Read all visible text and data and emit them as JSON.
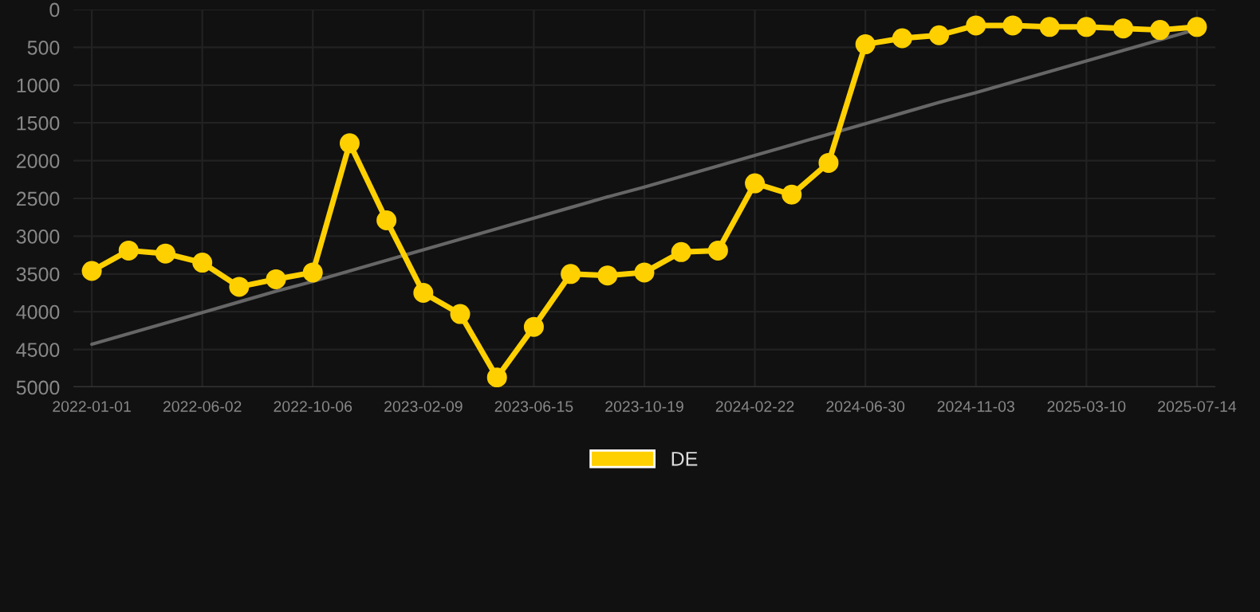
{
  "chart_data": {
    "type": "line",
    "categories": [
      "2022-01-01",
      null,
      null,
      "2022-06-02",
      null,
      null,
      "2022-10-06",
      null,
      null,
      "2023-02-09",
      null,
      null,
      "2023-06-15",
      null,
      null,
      "2023-10-19",
      null,
      null,
      "2024-02-22",
      null,
      null,
      "2024-06-30",
      null,
      null,
      "2024-11-03",
      null,
      null,
      "2025-03-10",
      null,
      null,
      "2025-07-14"
    ],
    "series": [
      {
        "name": "DE",
        "color": "#ffd000",
        "marker": "circle",
        "values": [
          3460,
          3190,
          3230,
          3350,
          3670,
          3570,
          3480,
          1770,
          2790,
          3750,
          4030,
          4870,
          4200,
          3500,
          3520,
          3480,
          3210,
          3190,
          2300,
          2450,
          2030,
          460,
          380,
          340,
          210,
          210,
          230,
          230,
          250,
          270,
          230
        ]
      },
      {
        "color": "#666666",
        "marker": "none",
        "values": [
          4430,
          4290,
          4150,
          4010,
          3870,
          3730,
          3600,
          3460,
          3320,
          3180,
          3040,
          2900,
          2760,
          2620,
          2480,
          2350,
          2210,
          2070,
          1930,
          1790,
          1650,
          1510,
          1370,
          1230,
          1100,
          960,
          820,
          680,
          540,
          400,
          260
        ]
      }
    ],
    "ylim": [
      5000,
      0
    ],
    "yticks": [
      0,
      500,
      1000,
      1500,
      2000,
      2500,
      3000,
      3500,
      4000,
      4500,
      5000
    ],
    "grid": true,
    "legend": "bottom",
    "line_style": "solid"
  }
}
